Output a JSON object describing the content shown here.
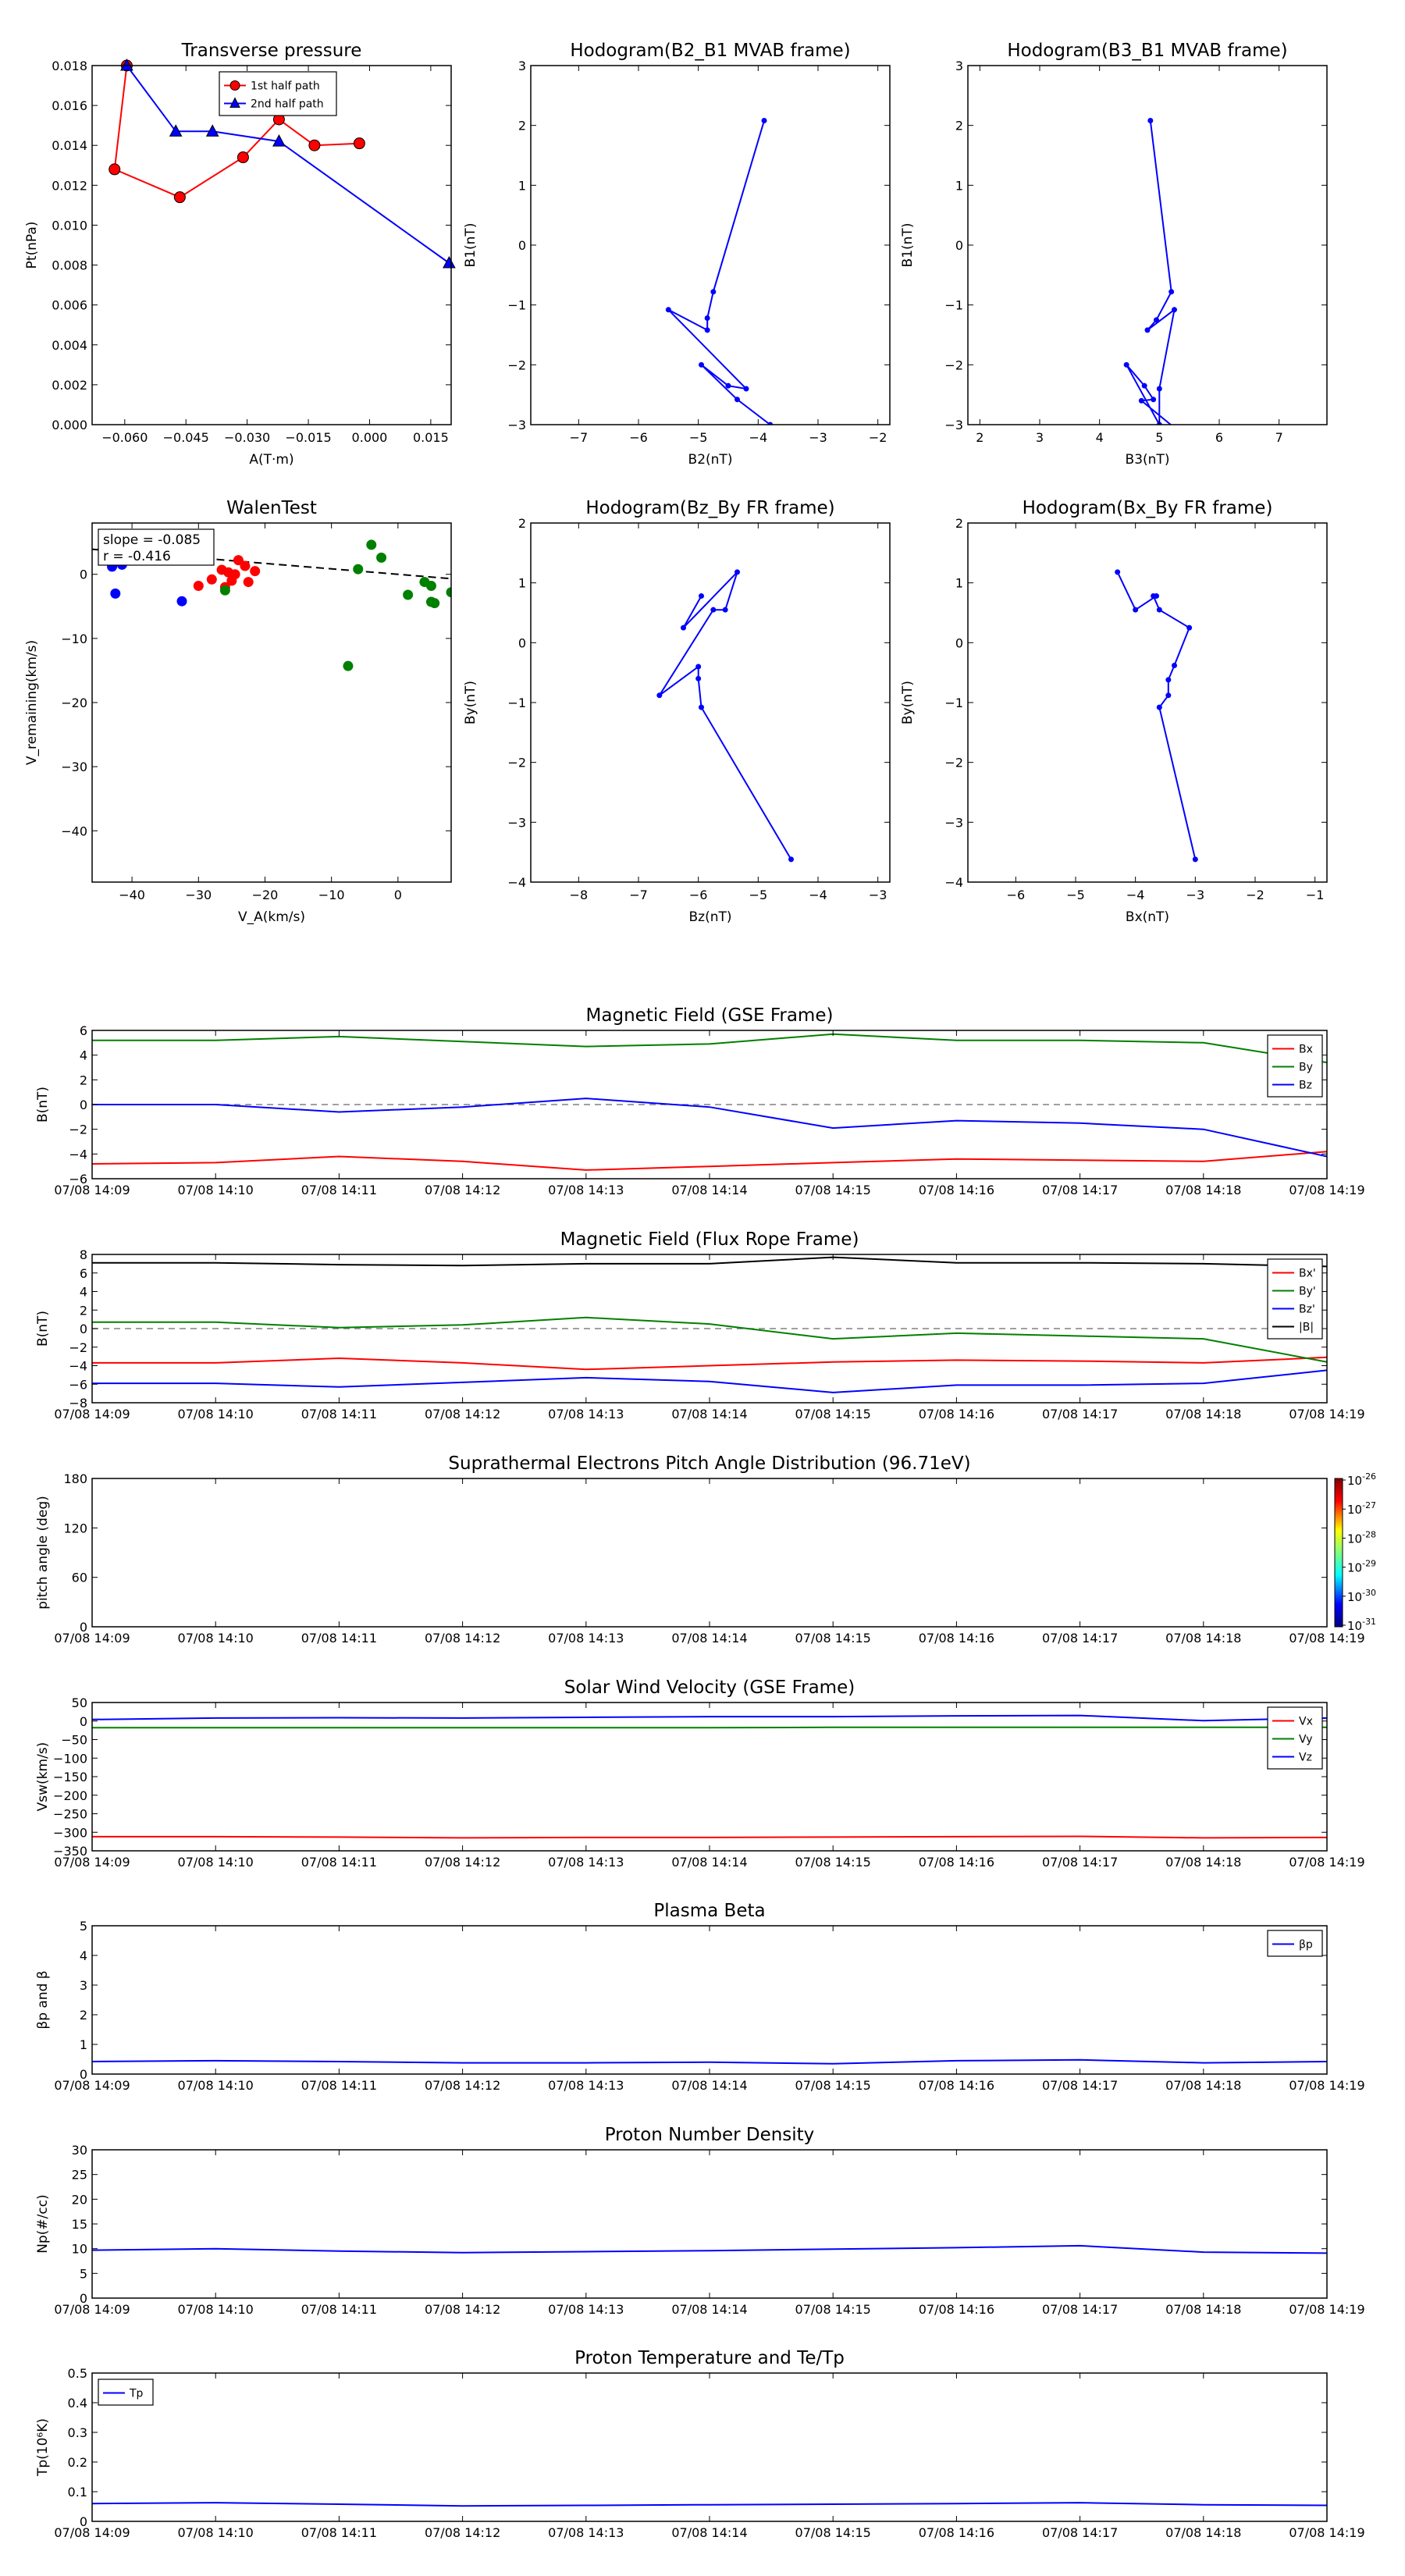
{
  "colors": {
    "red": "#ff0000",
    "green": "#008000",
    "blue": "#0000ff",
    "black": "#000000",
    "axis": "#000000",
    "dash": "#808080"
  },
  "time_ticks": [
    "07/08 14:09",
    "07/08 14:10",
    "07/08 14:11",
    "07/08 14:12",
    "07/08 14:13",
    "07/08 14:14",
    "07/08 14:15",
    "07/08 14:16",
    "07/08 14:17",
    "07/08 14:18",
    "07/08 14:19"
  ],
  "chart_data": [
    {
      "id": "pt",
      "type": "line",
      "title": "Transverse pressure",
      "xlabel": "A(T·m)",
      "ylabel": "Pt(nPa)",
      "xlim": [
        -0.068,
        0.02
      ],
      "ylim": [
        0,
        0.018
      ],
      "xticks": [
        -0.06,
        -0.045,
        -0.03,
        -0.015,
        0.0,
        0.015
      ],
      "xticklabels": [
        "−0.060",
        "−0.045",
        "−0.030",
        "−0.015",
        "0.000",
        "0.015"
      ],
      "yticks": [
        0,
        0.002,
        0.004,
        0.006,
        0.008,
        0.01,
        0.012,
        0.014,
        0.016,
        0.018
      ],
      "yticklabels": [
        "0.000",
        "0.002",
        "0.004",
        "0.006",
        "0.008",
        "0.010",
        "0.012",
        "0.014",
        "0.016",
        "0.018"
      ],
      "legend": "top-center",
      "series": [
        {
          "name": "1st half path",
          "color": "red",
          "marker": "circle",
          "x": [
            -0.0025,
            -0.0135,
            -0.0222,
            -0.031,
            -0.0465,
            -0.0625,
            -0.0595
          ],
          "y": [
            0.0141,
            0.014,
            0.0153,
            0.0134,
            0.0114,
            0.0128,
            0.018
          ]
        },
        {
          "name": "2nd half path",
          "color": "blue",
          "marker": "triangle",
          "x": [
            -0.0595,
            -0.0475,
            -0.0385,
            -0.0222,
            0.0195
          ],
          "y": [
            0.018,
            0.0147,
            0.0147,
            0.0142,
            0.0081
          ]
        }
      ]
    },
    {
      "id": "h1",
      "type": "line",
      "title": "Hodogram(B2_B1 MVAB frame)",
      "xlabel": "B2(nT)",
      "ylabel": "B1(nT)",
      "xlim": [
        -7.8,
        -1.8
      ],
      "ylim": [
        -3,
        3
      ],
      "xticks": [
        -7,
        -6,
        -5,
        -4,
        -3,
        -2
      ],
      "xticklabels": [
        "−7",
        "−6",
        "−5",
        "−4",
        "−3",
        "−2"
      ],
      "yticks": [
        -3,
        -2,
        -1,
        0,
        1,
        2,
        3
      ],
      "yticklabels": [
        "−3",
        "−2",
        "−1",
        "0",
        "1",
        "2",
        "3"
      ],
      "series": [
        {
          "color": "blue",
          "marker": "dot",
          "x": [
            -3.9,
            -4.75,
            -4.85,
            -4.85,
            -5.5,
            -4.2,
            -4.5,
            -4.95,
            -4.35,
            -3.8
          ],
          "y": [
            2.08,
            -0.78,
            -1.22,
            -1.42,
            -1.08,
            -2.4,
            -2.35,
            -2.0,
            -2.58,
            -3.0
          ]
        }
      ]
    },
    {
      "id": "h2",
      "type": "line",
      "title": "Hodogram(B3_B1 MVAB frame)",
      "xlabel": "B3(nT)",
      "ylabel": "B1(nT)",
      "xlim": [
        1.8,
        7.8
      ],
      "ylim": [
        -3,
        3
      ],
      "xticks": [
        2,
        3,
        4,
        5,
        6,
        7
      ],
      "xticklabels": [
        "2",
        "3",
        "4",
        "5",
        "6",
        "7"
      ],
      "yticks": [
        -3,
        -2,
        -1,
        0,
        1,
        2,
        3
      ],
      "yticklabels": [
        "−3",
        "−2",
        "−1",
        "0",
        "1",
        "2",
        "3"
      ],
      "series": [
        {
          "color": "blue",
          "marker": "dot",
          "x": [
            4.85,
            5.2,
            4.95,
            4.8,
            5.25,
            5.0,
            5.0,
            4.45,
            4.75,
            4.9,
            4.7,
            5.25
          ],
          "y": [
            2.08,
            -0.78,
            -1.25,
            -1.42,
            -1.08,
            -2.4,
            -3.0,
            -2.0,
            -2.35,
            -2.58,
            -2.6,
            -3.05
          ]
        }
      ]
    },
    {
      "id": "walen",
      "type": "scatter",
      "title": "WalenTest",
      "xlabel": "V_A(km/s)",
      "ylabel": "V_remaining(km/s)",
      "xlim": [
        -46,
        8
      ],
      "ylim": [
        -48,
        8
      ],
      "xticks": [
        -40,
        -30,
        -20,
        -10,
        0
      ],
      "xticklabels": [
        "−40",
        "−30",
        "−20",
        "−10",
        "0"
      ],
      "yticks": [
        -40,
        -30,
        -20,
        -10,
        0
      ],
      "yticklabels": [
        "−40",
        "−30",
        "−20",
        "−10",
        "0"
      ],
      "annotation": {
        "line1": "slope = -0.085",
        "line2": "r = -0.416"
      },
      "fit": {
        "slope": -0.085,
        "intercept": 0.0,
        "x": [
          -46,
          8
        ]
      },
      "series": [
        {
          "color": "blue",
          "x": [
            -43,
            -42.5,
            -41.5,
            -32.5
          ],
          "y": [
            1.2,
            -3.0,
            1.5,
            -4.2
          ]
        },
        {
          "color": "red",
          "x": [
            -30,
            -28,
            -26.5,
            -25.5,
            -24,
            -23,
            -22.5,
            -21.5,
            -24.5,
            -26,
            -25
          ],
          "y": [
            -1.8,
            -0.8,
            0.7,
            0.3,
            2.2,
            1.3,
            -1.2,
            0.5,
            0.0,
            -2.0,
            -1.0
          ]
        },
        {
          "color": "green",
          "x": [
            -26,
            -7.5,
            -6,
            -4,
            -2.5,
            1.5,
            4,
            5,
            5.5,
            5,
            8
          ],
          "y": [
            -2.5,
            -14.3,
            0.8,
            4.6,
            2.6,
            -3.2,
            -1.2,
            -4.3,
            -4.5,
            -1.8,
            -2.8
          ]
        }
      ]
    },
    {
      "id": "h3",
      "type": "line",
      "title": "Hodogram(Bz_By FR frame)",
      "xlabel": "Bz(nT)",
      "ylabel": "By(nT)",
      "xlim": [
        -8.8,
        -2.8
      ],
      "ylim": [
        -4,
        2
      ],
      "xticks": [
        -8,
        -7,
        -6,
        -5,
        -4,
        -3
      ],
      "xticklabels": [
        "−8",
        "−7",
        "−6",
        "−5",
        "−4",
        "−3"
      ],
      "yticks": [
        -4,
        -3,
        -2,
        -1,
        0,
        1,
        2
      ],
      "yticklabels": [
        "−4",
        "−3",
        "−2",
        "−1",
        "0",
        "1",
        "2"
      ],
      "series": [
        {
          "color": "blue",
          "marker": "dot",
          "x": [
            -5.95,
            -6.25,
            -5.35,
            -5.55,
            -5.75,
            -6.65,
            -6.0,
            -6.0,
            -5.95,
            -4.45
          ],
          "y": [
            0.78,
            0.25,
            1.18,
            0.55,
            0.55,
            -0.88,
            -0.4,
            -0.6,
            -1.08,
            -3.62
          ]
        }
      ]
    },
    {
      "id": "h4",
      "type": "line",
      "title": "Hodogram(Bx_By FR frame)",
      "xlabel": "Bx(nT)",
      "ylabel": "By(nT)",
      "xlim": [
        -6.8,
        -0.8
      ],
      "ylim": [
        -4,
        2
      ],
      "xticks": [
        -6,
        -5,
        -4,
        -3,
        -2,
        -1
      ],
      "xticklabels": [
        "−6",
        "−5",
        "−4",
        "−3",
        "−2",
        "−1"
      ],
      "yticks": [
        -4,
        -3,
        -2,
        -1,
        0,
        1,
        2
      ],
      "yticklabels": [
        "−4",
        "−3",
        "−2",
        "−1",
        "0",
        "1",
        "2"
      ],
      "series": [
        {
          "color": "blue",
          "marker": "dot",
          "x": [
            -4.3,
            -4.0,
            -3.65,
            -3.7,
            -3.6,
            -3.1,
            -3.35,
            -3.45,
            -3.45,
            -3.6,
            -3.0
          ],
          "y": [
            1.18,
            0.55,
            0.78,
            0.78,
            0.55,
            0.25,
            -0.38,
            -0.62,
            -0.88,
            -1.08,
            -3.62
          ]
        }
      ]
    },
    {
      "id": "bgse",
      "type": "line",
      "title": "Magnetic Field (GSE Frame)",
      "ylabel": "B(nT)",
      "xlim": [
        0,
        10
      ],
      "ylim": [
        -6,
        6
      ],
      "yticks": [
        -6,
        -4,
        -2,
        0,
        2,
        4,
        6
      ],
      "yticklabels": [
        "−6",
        "−4",
        "−2",
        "0",
        "2",
        "4",
        "6"
      ],
      "zero_line": true,
      "legend": "top-right",
      "x": [
        0,
        1,
        2,
        3,
        4,
        5,
        6,
        7,
        8,
        9,
        10
      ],
      "series": [
        {
          "name": "Bx",
          "color": "red",
          "values": [
            -4.8,
            -4.7,
            -4.2,
            -4.6,
            -5.3,
            -5.0,
            -4.7,
            -4.4,
            -4.5,
            -4.6,
            -3.8
          ]
        },
        {
          "name": "By",
          "color": "green",
          "values": [
            5.2,
            5.2,
            5.5,
            5.1,
            4.7,
            4.9,
            5.7,
            5.2,
            5.2,
            5.0,
            3.4
          ]
        },
        {
          "name": "Bz",
          "color": "blue",
          "values": [
            0.0,
            0.0,
            -0.6,
            -0.2,
            0.5,
            -0.2,
            -1.9,
            -1.3,
            -1.5,
            -2.0,
            -4.2
          ]
        }
      ]
    },
    {
      "id": "bfr",
      "type": "line",
      "title": "Magnetic Field (Flux Rope Frame)",
      "ylabel": "B(nT)",
      "xlim": [
        0,
        10
      ],
      "ylim": [
        -8,
        8
      ],
      "yticks": [
        -8,
        -6,
        -4,
        -2,
        0,
        2,
        4,
        6,
        8
      ],
      "yticklabels": [
        "−8",
        "−6",
        "−4",
        "−2",
        "0",
        "2",
        "4",
        "6",
        "8"
      ],
      "zero_line": true,
      "legend": "top-right",
      "x": [
        0,
        1,
        2,
        3,
        4,
        5,
        6,
        7,
        8,
        9,
        10
      ],
      "series": [
        {
          "name": "Bx'",
          "color": "red",
          "values": [
            -3.7,
            -3.7,
            -3.2,
            -3.7,
            -4.4,
            -4.0,
            -3.6,
            -3.4,
            -3.5,
            -3.7,
            -3.1
          ]
        },
        {
          "name": "By'",
          "color": "green",
          "values": [
            0.7,
            0.7,
            0.1,
            0.4,
            1.2,
            0.5,
            -1.1,
            -0.5,
            -0.8,
            -1.1,
            -3.6
          ]
        },
        {
          "name": "Bz'",
          "color": "blue",
          "values": [
            -5.9,
            -5.9,
            -6.3,
            -5.8,
            -5.3,
            -5.7,
            -6.9,
            -6.1,
            -6.1,
            -5.9,
            -4.5
          ]
        },
        {
          "name": "|B|",
          "color": "black",
          "values": [
            7.1,
            7.1,
            6.9,
            6.8,
            7.0,
            7.0,
            7.7,
            7.1,
            7.1,
            7.0,
            6.7
          ]
        }
      ]
    },
    {
      "id": "pad",
      "type": "heatmap",
      "title": "Suprathermal Electrons Pitch Angle Distribution (96.71eV)",
      "ylabel": "pitch angle (deg)",
      "xlim": [
        0,
        10
      ],
      "ylim": [
        0,
        180
      ],
      "yticks": [
        0,
        60,
        120,
        180
      ],
      "yticklabels": [
        "0",
        "60",
        "120",
        "180"
      ],
      "colorbar": {
        "ticks": [
          "10-26",
          "10-27",
          "10-28",
          "10-29",
          "10-30",
          "10-31"
        ],
        "exponents": [
          "-26",
          "-27",
          "-28",
          "-29",
          "-30",
          "-31"
        ]
      }
    },
    {
      "id": "vsw",
      "type": "line",
      "title": "Solar Wind Velocity (GSE Frame)",
      "ylabel": "Vsw(km/s)",
      "xlim": [
        0,
        10
      ],
      "ylim": [
        -350,
        50
      ],
      "yticks": [
        -350,
        -300,
        -250,
        -200,
        -150,
        -100,
        -50,
        0,
        50
      ],
      "yticklabels": [
        "−350",
        "−300",
        "−250",
        "−200",
        "−150",
        "−100",
        "−50",
        "0",
        "50"
      ],
      "legend": "top-right",
      "x": [
        0,
        1,
        2,
        3,
        4,
        5,
        6,
        7,
        8,
        9,
        10
      ],
      "series": [
        {
          "name": "Vx",
          "color": "red",
          "values": [
            -312,
            -312,
            -313,
            -315,
            -314,
            -314,
            -313,
            -312,
            -311,
            -315,
            -314
          ]
        },
        {
          "name": "Vy",
          "color": "green",
          "values": [
            -18,
            -18,
            -18,
            -18,
            -18,
            -18,
            -17,
            -17,
            -17,
            -17,
            -17
          ]
        },
        {
          "name": "Vz",
          "color": "blue",
          "values": [
            4,
            8,
            9,
            8,
            10,
            12,
            12,
            14,
            15,
            1,
            8
          ]
        }
      ]
    },
    {
      "id": "beta",
      "type": "line",
      "title": "Plasma Beta",
      "ylabel": "βp and β",
      "xlim": [
        0,
        10
      ],
      "ylim": [
        0,
        5
      ],
      "yticks": [
        0,
        1,
        2,
        3,
        4,
        5
      ],
      "yticklabels": [
        "0",
        "1",
        "2",
        "3",
        "4",
        "5"
      ],
      "legend": "top-right",
      "x": [
        0,
        1,
        2,
        3,
        4,
        5,
        6,
        7,
        8,
        9,
        10
      ],
      "series": [
        {
          "name": "βp",
          "color": "blue",
          "values": [
            0.42,
            0.45,
            0.42,
            0.38,
            0.38,
            0.4,
            0.35,
            0.45,
            0.48,
            0.38,
            0.42
          ]
        }
      ]
    },
    {
      "id": "np",
      "type": "line",
      "title": "Proton Number Density",
      "ylabel": "Np(#/cc)",
      "xlim": [
        0,
        10
      ],
      "ylim": [
        0,
        30
      ],
      "yticks": [
        0,
        5,
        10,
        15,
        20,
        25,
        30
      ],
      "yticklabels": [
        "0",
        "5",
        "10",
        "15",
        "20",
        "25",
        "30"
      ],
      "x": [
        0,
        1,
        2,
        3,
        4,
        5,
        6,
        7,
        8,
        9,
        10
      ],
      "series": [
        {
          "color": "blue",
          "values": [
            9.7,
            10.0,
            9.5,
            9.2,
            9.4,
            9.6,
            9.9,
            10.2,
            10.6,
            9.3,
            9.1
          ]
        }
      ]
    },
    {
      "id": "tp",
      "type": "line",
      "title": "Proton Temperature and Te/Tp",
      "ylabel": "Tp(10⁶K)",
      "xlim": [
        0,
        10
      ],
      "ylim": [
        0,
        0.5
      ],
      "yticks": [
        0,
        0.1,
        0.2,
        0.3,
        0.4,
        0.5
      ],
      "yticklabels": [
        "0",
        "0.1",
        "0.2",
        "0.3",
        "0.4",
        "0.5"
      ],
      "legend": "top-left",
      "x": [
        0,
        1,
        2,
        3,
        4,
        5,
        6,
        7,
        8,
        9,
        10
      ],
      "series": [
        {
          "name": "Tp",
          "color": "blue",
          "values": [
            0.06,
            0.063,
            0.058,
            0.052,
            0.054,
            0.056,
            0.058,
            0.06,
            0.063,
            0.056,
            0.054
          ]
        }
      ]
    }
  ]
}
